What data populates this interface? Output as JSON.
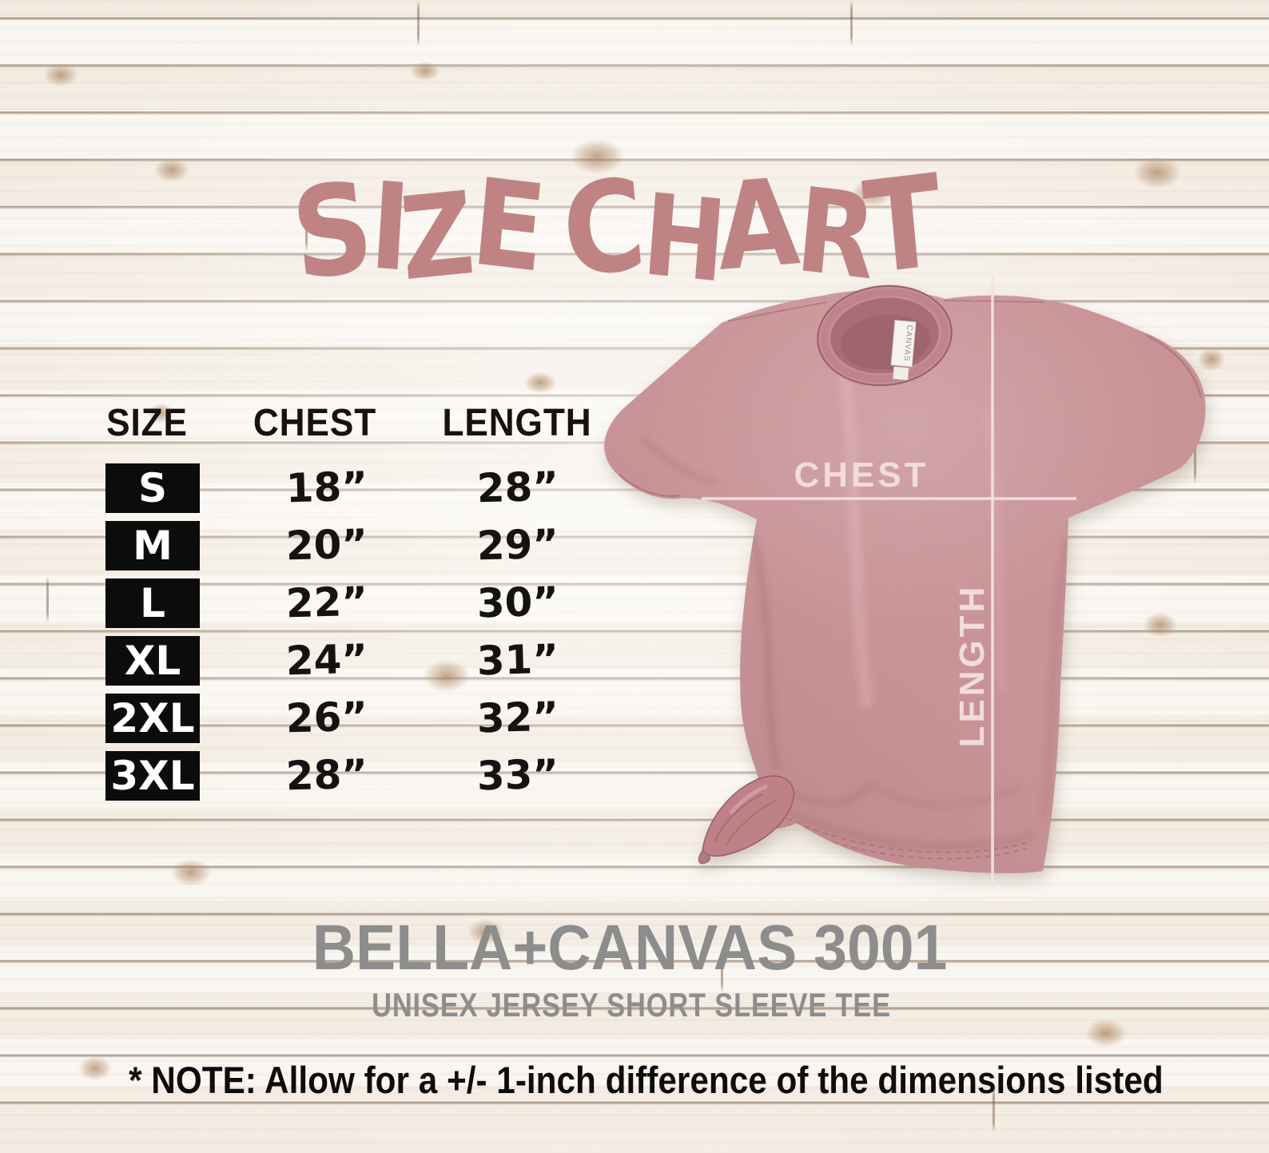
{
  "title": {
    "text": "SIZE CHART"
  },
  "table": {
    "headers": [
      "SIZE",
      "CHEST",
      "LENGTH"
    ],
    "rows": [
      {
        "size": "S",
        "chest": "18”",
        "length": "28”"
      },
      {
        "size": "M",
        "chest": "20”",
        "length": "29”"
      },
      {
        "size": "L",
        "chest": "22”",
        "length": "30”"
      },
      {
        "size": "XL",
        "chest": "24”",
        "length": "31”"
      },
      {
        "size": "2XL",
        "chest": "26”",
        "length": "32”"
      },
      {
        "size": "3XL",
        "chest": "28”",
        "length": "33”"
      }
    ]
  },
  "tshirt": {
    "chest_label": "CHEST",
    "length_label": "LENGTH",
    "tag_text": "CANVAS"
  },
  "product": {
    "name": "BELLA+CANVAS 3001",
    "subtitle": "UNISEX JERSEY SHORT SLEEVE TEE"
  },
  "note": "* NOTE: Allow for a +/- 1-inch difference of the dimensions listed",
  "colors": {
    "title": "#bf8383",
    "shirt": "#c68e92",
    "shirt_shadow": "#9a5f66",
    "measure": "#f3e2e2",
    "text_dark": "#151311",
    "product_gray": "#8d8d8d",
    "size_box_bg": "#0c0c0c",
    "size_box_text": "#ffffff",
    "wood_line": "#6e4f34",
    "wood_knot": "#9e7148"
  },
  "chart_data": {
    "type": "table",
    "title": "SIZE CHART",
    "columns": [
      "SIZE",
      "CHEST",
      "LENGTH"
    ],
    "units": "inches",
    "rows": [
      [
        "S",
        18,
        28
      ],
      [
        "M",
        20,
        29
      ],
      [
        "L",
        22,
        30
      ],
      [
        "XL",
        24,
        31
      ],
      [
        "2XL",
        26,
        32
      ],
      [
        "3XL",
        28,
        33
      ]
    ],
    "note": "* NOTE: Allow for a +/- 1-inch difference of the dimensions listed"
  }
}
